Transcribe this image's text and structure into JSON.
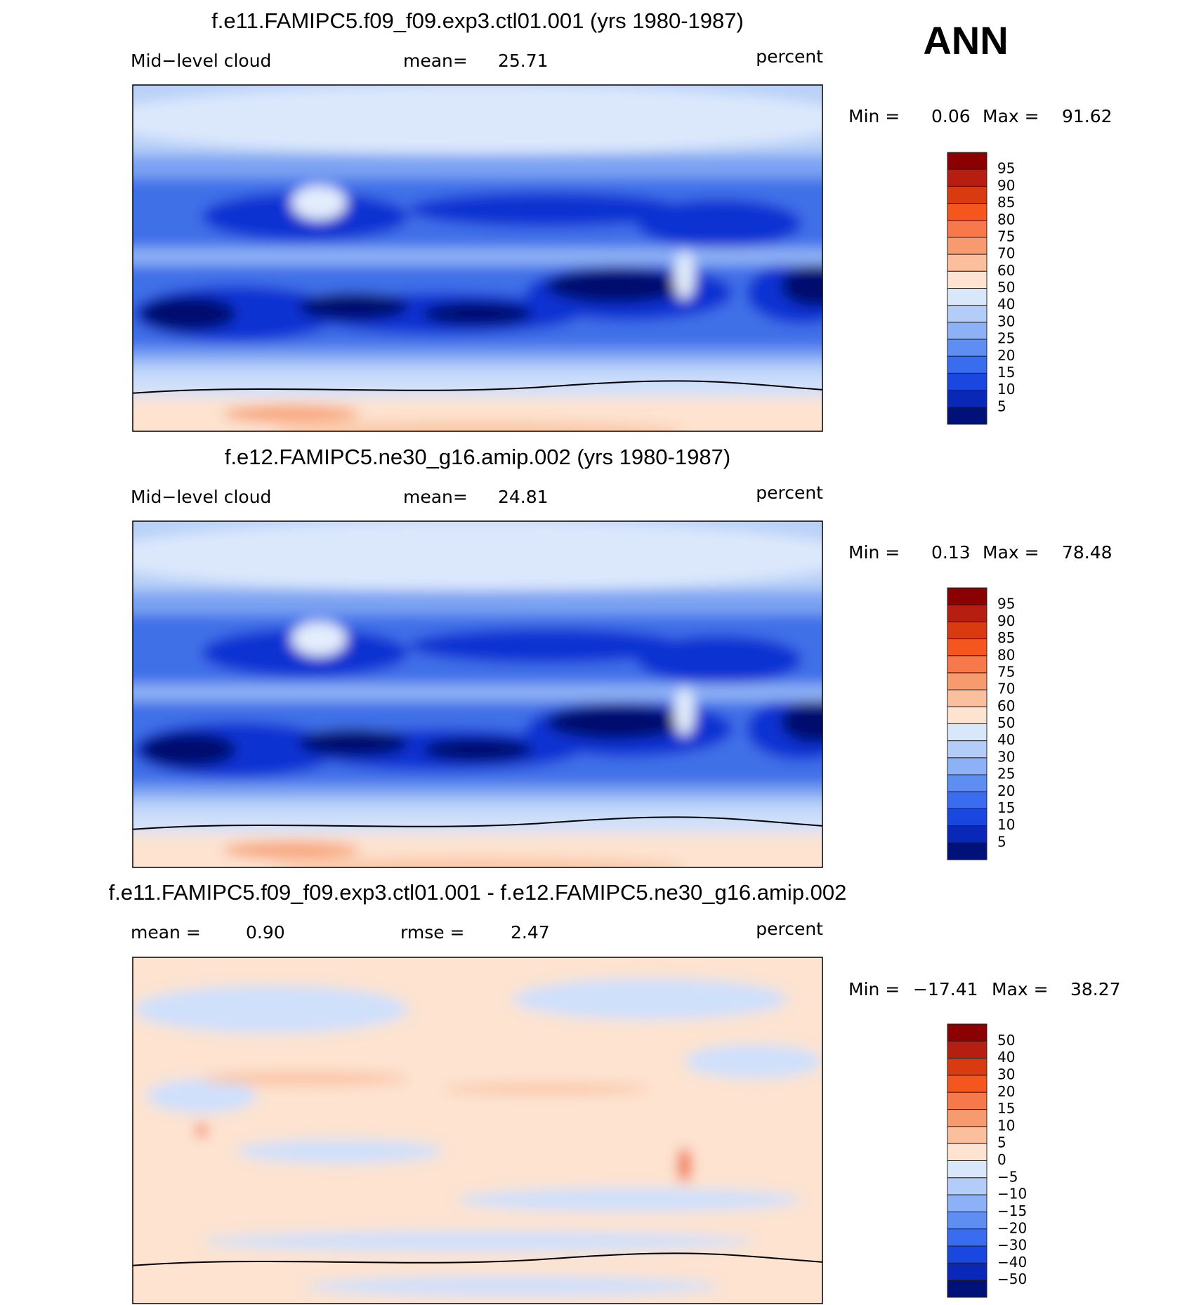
{
  "figure_label": "ANN",
  "panels": [
    {
      "title": "f.e11.FAMIPC5.f09_f09.exp3.ctl01.001 (yrs 1980-1987)",
      "subtitle_items": [
        "Mid−level cloud",
        "mean=",
        "25.71"
      ],
      "units": "percent",
      "range_items": [
        "Min =",
        "0.06",
        "Max =",
        "91.62"
      ],
      "colorbar_labels": [
        "95",
        "90",
        "85",
        "80",
        "75",
        "70",
        "60",
        "50",
        "40",
        "30",
        "25",
        "20",
        "15",
        "10",
        "5"
      ]
    },
    {
      "title": "f.e12.FAMIPC5.ne30_g16.amip.002 (yrs 1980-1987)",
      "subtitle_items": [
        "Mid−level cloud",
        "mean=",
        "24.81"
      ],
      "units": "percent",
      "range_items": [
        "Min =",
        "0.13",
        "Max =",
        "78.48"
      ],
      "colorbar_labels": [
        "95",
        "90",
        "85",
        "80",
        "75",
        "70",
        "60",
        "50",
        "40",
        "30",
        "25",
        "20",
        "15",
        "10",
        "5"
      ]
    },
    {
      "title": "f.e11.FAMIPC5.f09_f09.exp3.ctl01.001 - f.e12.FAMIPC5.ne30_g16.amip.002",
      "subtitle_items": [
        "mean =",
        "0.90",
        "rmse =",
        "2.47"
      ],
      "units": "percent",
      "range_items": [
        "Min =",
        "−17.41",
        "Max =",
        "38.27"
      ],
      "colorbar_labels": [
        "50",
        "40",
        "30",
        "20",
        "15",
        "10",
        "5",
        "0",
        "−5",
        "−10",
        "−15",
        "−20",
        "−30",
        "−40",
        "−50"
      ]
    }
  ]
}
